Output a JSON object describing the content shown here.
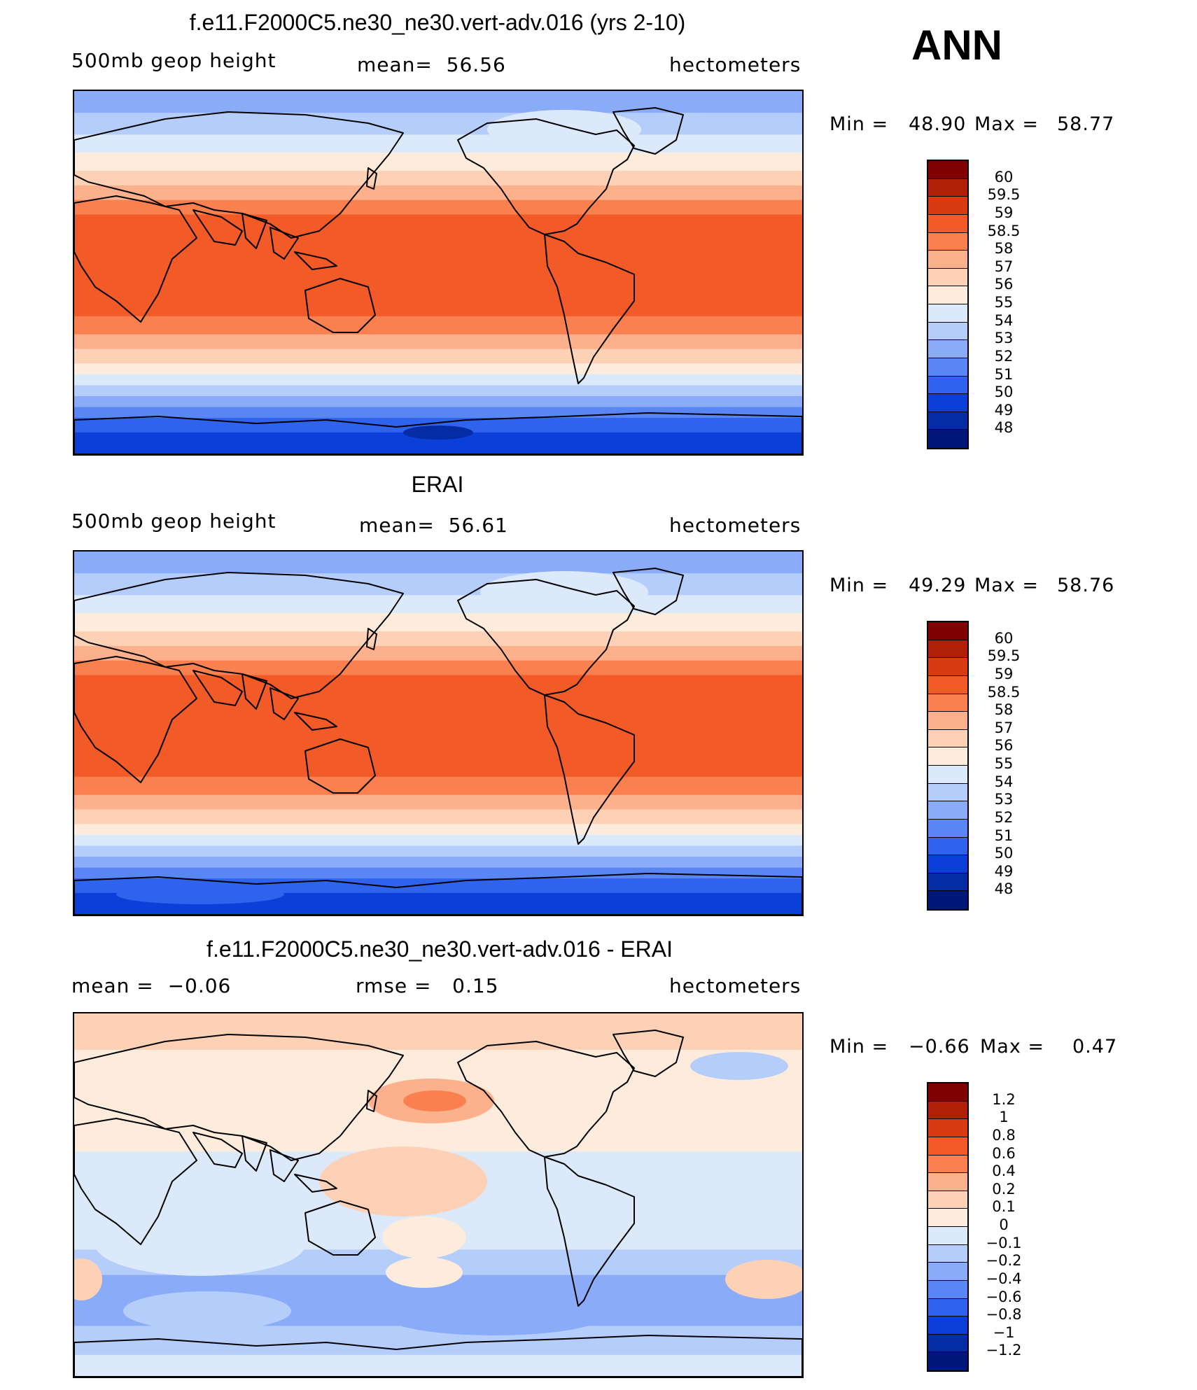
{
  "season": "ANN",
  "panels": [
    {
      "title": "f.e11.F2000C5.ne30_ne30.vert-adv.016 (yrs 2-10)",
      "left_label": "500mb geop height",
      "mid_label": "mean=  56.56",
      "right_label": "hectometers",
      "min_label": "Min =",
      "min_value": "48.90",
      "max_label": "Max =",
      "max_value": "58.77",
      "colorbar_labels": [
        "60",
        "59.5",
        "59",
        "58.5",
        "58",
        "57",
        "56",
        "55",
        "54",
        "53",
        "52",
        "51",
        "50",
        "49",
        "48"
      ]
    },
    {
      "title": "ERAI",
      "left_label": "500mb geop height",
      "mid_label": "mean=  56.61",
      "right_label": "hectometers",
      "min_label": "Min =",
      "min_value": "49.29",
      "max_label": "Max =",
      "max_value": "58.76",
      "colorbar_labels": [
        "60",
        "59.5",
        "59",
        "58.5",
        "58",
        "57",
        "56",
        "55",
        "54",
        "53",
        "52",
        "51",
        "50",
        "49",
        "48"
      ]
    },
    {
      "title": "f.e11.F2000C5.ne30_ne30.vert-adv.016 - ERAI",
      "left_label": "mean =  −0.06",
      "mid_label": "rmse =   0.15",
      "right_label": "hectometers",
      "min_label": "Min =",
      "min_value": "−0.66",
      "max_label": "Max =",
      "max_value": "0.47",
      "colorbar_labels": [
        "1.2",
        "1",
        "0.8",
        "0.6",
        "0.4",
        "0.2",
        "0.1",
        "0",
        "−0.1",
        "−0.2",
        "−0.4",
        "−0.6",
        "−0.8",
        "−1",
        "−1.2"
      ]
    }
  ],
  "colors": {
    "palette": [
      "#7f0000",
      "#b01f07",
      "#d93a10",
      "#f25a28",
      "#fa8050",
      "#fdb08c",
      "#fdd1b6",
      "#fdecdc",
      "#dce9fa",
      "#b5cdfa",
      "#8aacf8",
      "#5a86f5",
      "#2f62ed",
      "#0a3fd8",
      "#052ba5",
      "#00187a"
    ],
    "land_outline": "#000000"
  }
}
